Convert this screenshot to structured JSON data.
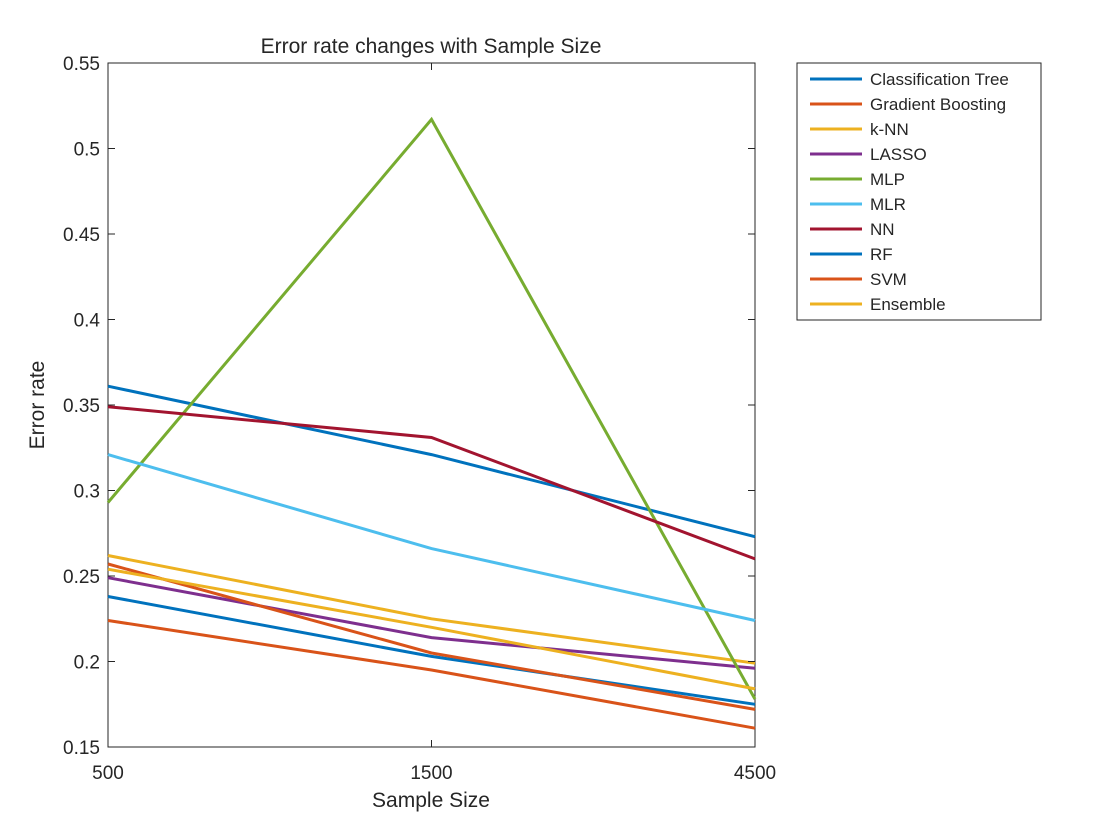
{
  "chart_data": {
    "type": "line",
    "title": "Error rate changes with Sample Size",
    "xlabel": "Sample Size",
    "ylabel": "Error rate",
    "categories": [
      "500",
      "1500",
      "4500"
    ],
    "ylim": [
      0.15,
      0.55
    ],
    "yticks": [
      0.15,
      0.2,
      0.25,
      0.3,
      0.35,
      0.4,
      0.45,
      0.5,
      0.55
    ],
    "ytick_labels": [
      "0.15",
      "0.2",
      "0.25",
      "0.3",
      "0.35",
      "0.4",
      "0.45",
      "0.5",
      "0.55"
    ],
    "grid": false,
    "legend_position": "outside-top-right",
    "series": [
      {
        "name": "Classification Tree",
        "color": "#0072BD",
        "values": [
          0.361,
          0.321,
          0.273
        ]
      },
      {
        "name": "Gradient Boosting",
        "color": "#D95319",
        "values": [
          0.224,
          0.195,
          0.161
        ]
      },
      {
        "name": "k-NN",
        "color": "#EDB120",
        "values": [
          0.262,
          0.225,
          0.199
        ]
      },
      {
        "name": "LASSO",
        "color": "#7E2F8E",
        "values": [
          0.249,
          0.214,
          0.196
        ]
      },
      {
        "name": "MLP",
        "color": "#77AC30",
        "values": [
          0.293,
          0.517,
          0.178
        ]
      },
      {
        "name": "MLR",
        "color": "#4DBEEE",
        "values": [
          0.321,
          0.266,
          0.224
        ]
      },
      {
        "name": "NN",
        "color": "#A2142F",
        "values": [
          0.349,
          0.331,
          0.26
        ]
      },
      {
        "name": "RF",
        "color": "#0072BD",
        "values": [
          0.238,
          0.203,
          0.175
        ]
      },
      {
        "name": "SVM",
        "color": "#D95319",
        "values": [
          0.257,
          0.205,
          0.172
        ]
      },
      {
        "name": "Ensemble",
        "color": "#EDB120",
        "values": [
          0.254,
          0.22,
          0.184
        ]
      }
    ]
  }
}
